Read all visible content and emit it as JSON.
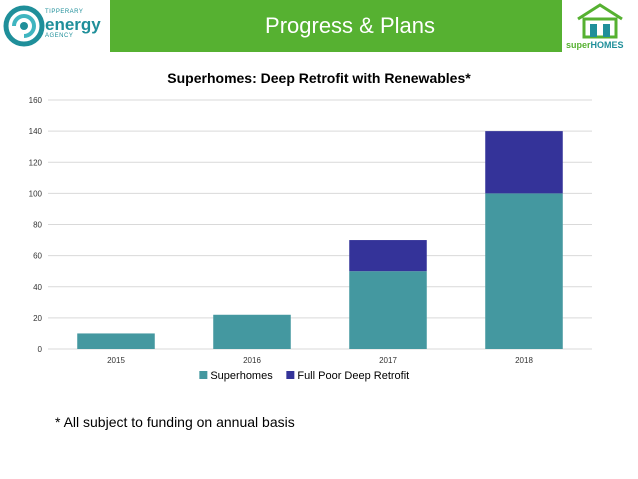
{
  "header": {
    "title": "Progress & Plans",
    "left_logo": {
      "line1": "TIPPERARY",
      "line2": "energy",
      "line3": "AGENCY"
    },
    "right_logo": {
      "part1": "super",
      "part2": "HOMES"
    }
  },
  "colors": {
    "title_bar": "#56b131",
    "superhomes": "#4498a0",
    "full_poor": "#343399",
    "agency_teal": "#1f8f9a"
  },
  "footnote": "* All subject to funding on annual basis",
  "chart_data": {
    "type": "bar",
    "stacked": true,
    "title": "Superhomes: Deep Retrofit with Renewables*",
    "categories": [
      "2015",
      "2016",
      "2017",
      "2018"
    ],
    "series": [
      {
        "name": "Superhomes",
        "values": [
          10,
          22,
          50,
          100
        ],
        "color": "#4498a0"
      },
      {
        "name": "Full Poor Deep Retrofit",
        "values": [
          0,
          0,
          20,
          40
        ],
        "color": "#343399"
      }
    ],
    "ylim": [
      0,
      160
    ],
    "yticks": [
      "0",
      "20",
      "40",
      "60",
      "80",
      "100",
      "120",
      "140",
      "160"
    ],
    "grid": true,
    "legend": "bottom"
  }
}
